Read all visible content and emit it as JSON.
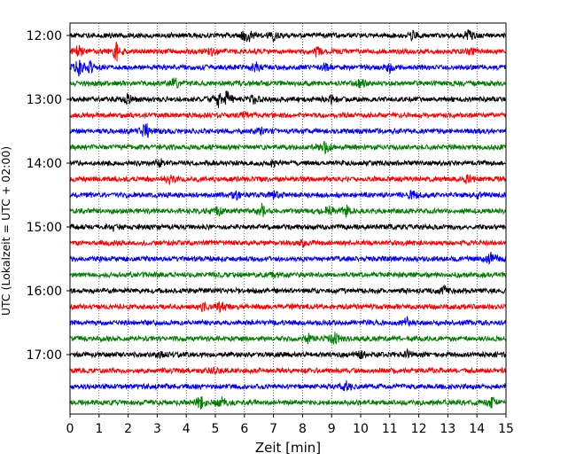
{
  "chart_data": {
    "type": "line",
    "xlabel": "Zeit  [min]",
    "ylabel": "UTC (Lokalzeit = UTC + 02:00)",
    "xlim": [
      0,
      15
    ],
    "x_ticks": [
      0,
      1,
      2,
      3,
      4,
      5,
      6,
      7,
      8,
      9,
      10,
      11,
      12,
      13,
      14,
      15
    ],
    "y_tick_labels": [
      "12:00",
      "13:00",
      "14:00",
      "15:00",
      "16:00",
      "17:00"
    ],
    "grid": "vertical dotted at each minute",
    "trace_colors": [
      "#000000",
      "#ff0000",
      "#0000ff",
      "#008000"
    ],
    "traces": [
      {
        "start": "12:00",
        "events": [
          [
            6.1,
            1.0
          ],
          [
            7.0,
            0.5
          ],
          [
            11.8,
            0.4
          ],
          [
            13.7,
            0.6
          ]
        ]
      },
      {
        "start": "12:15",
        "events": [
          [
            0.3,
            0.7
          ],
          [
            1.6,
            1.0
          ],
          [
            4.9,
            0.4
          ],
          [
            8.5,
            0.5
          ],
          [
            13.8,
            0.4
          ]
        ]
      },
      {
        "start": "12:30",
        "events": [
          [
            0.3,
            0.9
          ],
          [
            0.7,
            0.5
          ],
          [
            6.4,
            0.5
          ],
          [
            8.8,
            0.4
          ],
          [
            11.0,
            0.4
          ]
        ]
      },
      {
        "start": "12:45",
        "events": [
          [
            3.6,
            0.6
          ],
          [
            10.0,
            0.4
          ]
        ]
      },
      {
        "start": "13:00",
        "events": [
          [
            2.0,
            0.5
          ],
          [
            5.1,
            0.8
          ],
          [
            5.4,
            0.9
          ],
          [
            6.3,
            0.5
          ],
          [
            9.0,
            0.4
          ]
        ]
      },
      {
        "start": "13:15",
        "events": [
          [
            6.0,
            0.3
          ]
        ]
      },
      {
        "start": "13:30",
        "events": [
          [
            2.6,
            1.0
          ],
          [
            6.6,
            0.3
          ]
        ]
      },
      {
        "start": "13:45",
        "events": [
          [
            8.8,
            0.6
          ]
        ]
      },
      {
        "start": "14:00",
        "events": [
          [
            3.1,
            0.4
          ],
          [
            7.0,
            0.3
          ]
        ]
      },
      {
        "start": "14:15",
        "events": [
          [
            3.4,
            0.5
          ],
          [
            13.7,
            0.5
          ]
        ]
      },
      {
        "start": "14:30",
        "events": [
          [
            5.7,
            0.4
          ],
          [
            7.0,
            0.5
          ],
          [
            11.8,
            0.5
          ],
          [
            14.1,
            0.4
          ]
        ]
      },
      {
        "start": "14:45",
        "events": [
          [
            5.1,
            0.5
          ],
          [
            6.6,
            0.6
          ],
          [
            8.9,
            0.5
          ],
          [
            9.5,
            0.5
          ]
        ]
      },
      {
        "start": "15:00",
        "events": [
          [
            1.5,
            0.3
          ]
        ]
      },
      {
        "start": "15:15",
        "events": [
          [
            8.0,
            0.3
          ]
        ]
      },
      {
        "start": "15:30",
        "events": [
          [
            14.5,
            0.7
          ]
        ]
      },
      {
        "start": "15:45",
        "events": [
          [
            7.0,
            0.3
          ]
        ]
      },
      {
        "start": "16:00",
        "events": [
          [
            12.9,
            0.4
          ]
        ]
      },
      {
        "start": "16:15",
        "events": [
          [
            4.6,
            0.6
          ],
          [
            5.2,
            0.6
          ]
        ]
      },
      {
        "start": "16:30",
        "events": [
          [
            11.6,
            0.5
          ]
        ]
      },
      {
        "start": "16:45",
        "events": [
          [
            8.2,
            0.4
          ],
          [
            9.1,
            0.6
          ]
        ]
      },
      {
        "start": "17:00",
        "events": [
          [
            3.1,
            0.3
          ],
          [
            10.0,
            0.4
          ],
          [
            11.6,
            0.3
          ]
        ]
      },
      {
        "start": "17:15",
        "events": [
          [
            5.0,
            0.3
          ]
        ]
      },
      {
        "start": "17:30",
        "events": [
          [
            9.5,
            0.5
          ]
        ]
      },
      {
        "start": "17:45",
        "events": [
          [
            4.5,
            0.7
          ],
          [
            5.2,
            0.6
          ],
          [
            14.5,
            0.6
          ]
        ]
      }
    ]
  }
}
